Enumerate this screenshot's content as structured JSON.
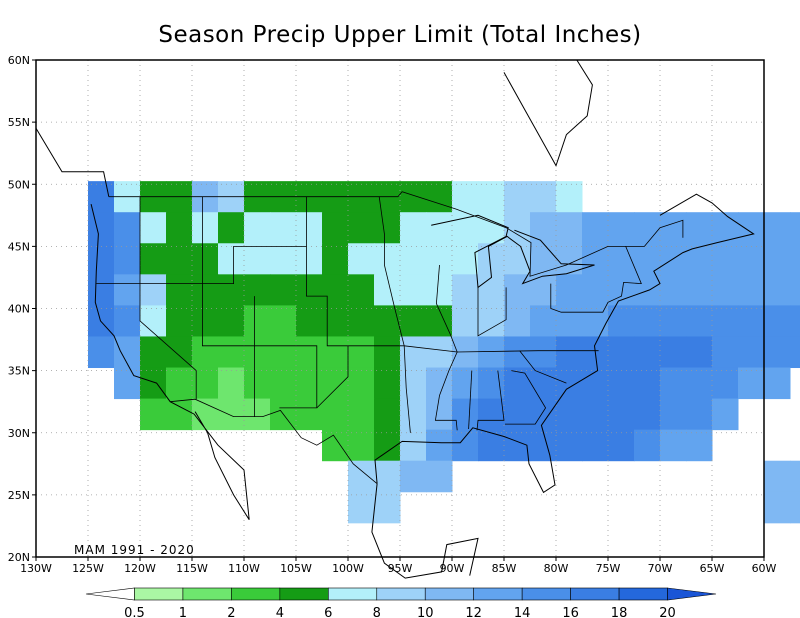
{
  "title": "Season Precip Upper Limit (Total Inches)",
  "period_label": "MAM 1991 - 2020",
  "x_ticks": [
    "130W",
    "125W",
    "120W",
    "115W",
    "110W",
    "105W",
    "100W",
    "95W",
    "90W",
    "85W",
    "80W",
    "75W",
    "70W",
    "65W",
    "60W"
  ],
  "y_ticks": [
    "60N",
    "55N",
    "50N",
    "45N",
    "40N",
    "35N",
    "30N",
    "25N",
    "20N"
  ],
  "colorbar": {
    "labels": [
      "0.5",
      "1",
      "2",
      "4",
      "6",
      "8",
      "10",
      "12",
      "14",
      "16",
      "18",
      "20"
    ],
    "colors": [
      "#ffffff",
      "#aaf7a4",
      "#6ee66e",
      "#3acb3a",
      "#159c15",
      "#b3f0fa",
      "#9ed2f8",
      "#7fb8f3",
      "#62a4ef",
      "#4a8fe9",
      "#3a7ee3",
      "#2468dc",
      "#1a55d6"
    ]
  },
  "map_data": {
    "cell_size_deg": 2.5,
    "lon_range": [
      -130,
      -60
    ],
    "lat_range": [
      20,
      60
    ],
    "grid_lines": true
  }
}
